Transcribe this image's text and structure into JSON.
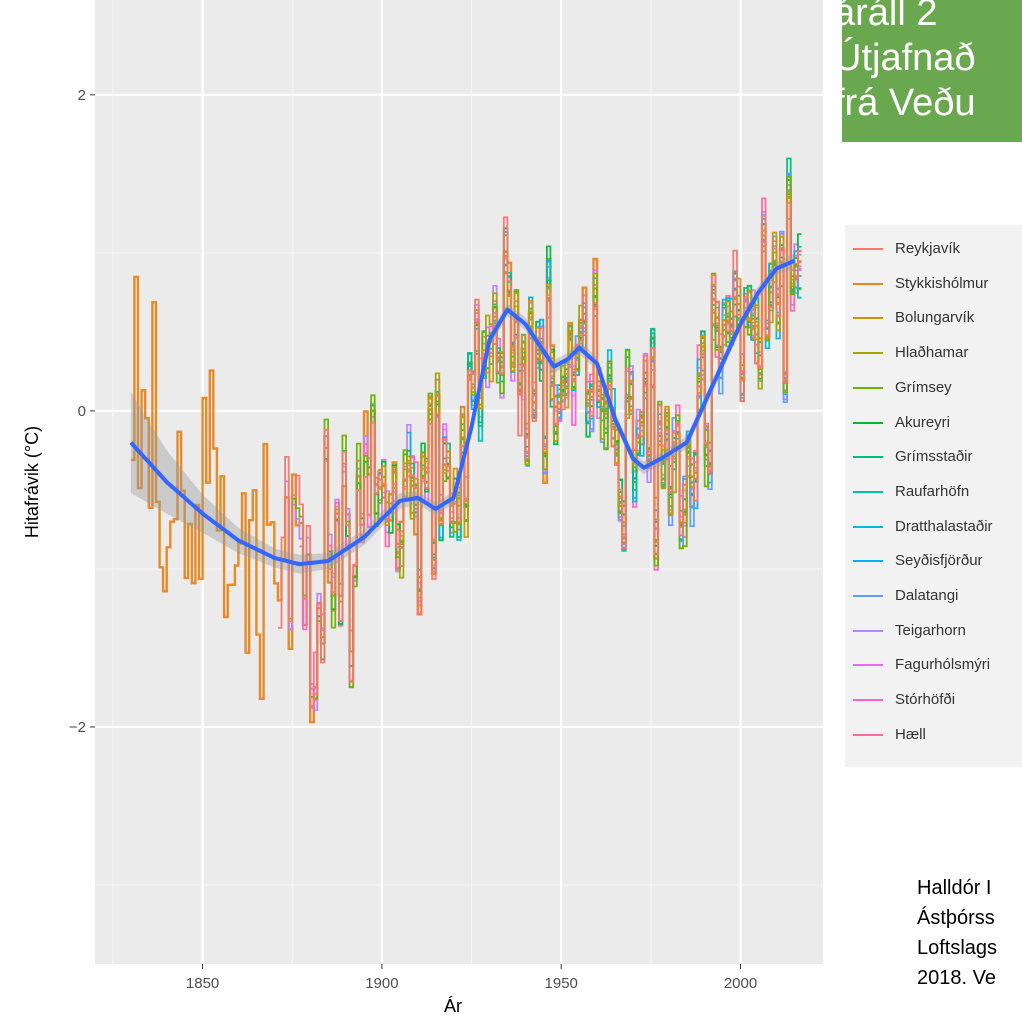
{
  "title_box": {
    "lines": [
      "áráll 2",
      "Útjafnað",
      "frá Veðu"
    ],
    "color": "#6aa84f"
  },
  "citation": {
    "lines": [
      "Halldór I",
      "Ástþórss",
      "Loftslags",
      "2018. Ve"
    ]
  },
  "chart_data": {
    "type": "line",
    "xlabel": "Ár",
    "ylabel": "Hitafrávik (°C)",
    "xlim": [
      1820,
      2023
    ],
    "ylim": [
      -3.5,
      2.6
    ],
    "xticks": [
      1850,
      1900,
      1950,
      2000
    ],
    "yticks": [
      -2,
      0,
      2
    ],
    "grid": true,
    "legend_position": "right",
    "series": [
      {
        "name": "Reykjavík",
        "color": "#f8766d",
        "start": 1871
      },
      {
        "name": "Stykkishólmur",
        "color": "#e6861c",
        "start": 1830
      },
      {
        "name": "Bolungarvík",
        "color": "#c99800",
        "start": 1898
      },
      {
        "name": "Hlaðhamar",
        "color": "#a3a500",
        "start": 1899
      },
      {
        "name": "Grímsey",
        "color": "#6bb100",
        "start": 1874
      },
      {
        "name": "Akureyri",
        "color": "#00ba38",
        "start": 1882
      },
      {
        "name": "Grímsstaðir",
        "color": "#00bf7d",
        "start": 1908
      },
      {
        "name": "Raufarhöfn",
        "color": "#00c0af",
        "start": 1920
      },
      {
        "name": "Dratthalastaðir",
        "color": "#00bcd8",
        "start": 1940
      },
      {
        "name": "Seyðisfjörður",
        "color": "#00b0f6",
        "start": 1907
      },
      {
        "name": "Dalatangi",
        "color": "#619cff",
        "start": 1939
      },
      {
        "name": "Teigarhorn",
        "color": "#b983ff",
        "start": 1873
      },
      {
        "name": "Fagurhólsmýri",
        "color": "#e76bf3",
        "start": 1898
      },
      {
        "name": "Stórhöfði",
        "color": "#fd61d1",
        "start": 1877
      },
      {
        "name": "Hæll",
        "color": "#ff67a4",
        "start": 1880
      }
    ],
    "smooth": {
      "color": "#3366ff",
      "x": [
        1830,
        1840,
        1850,
        1860,
        1870,
        1877,
        1885,
        1895,
        1905,
        1910,
        1915,
        1920,
        1925,
        1930,
        1935,
        1940,
        1945,
        1948,
        1952,
        1955,
        1960,
        1965,
        1970,
        1973,
        1978,
        1985,
        1990,
        1995,
        2000,
        2005,
        2010,
        2015
      ],
      "y": [
        -0.2,
        -0.45,
        -0.65,
        -0.82,
        -0.93,
        -0.97,
        -0.95,
        -0.8,
        -0.57,
        -0.55,
        -0.62,
        -0.55,
        -0.1,
        0.45,
        0.64,
        0.55,
        0.38,
        0.28,
        0.33,
        0.4,
        0.3,
        -0.05,
        -0.3,
        -0.36,
        -0.3,
        -0.2,
        0.05,
        0.3,
        0.55,
        0.75,
        0.9,
        0.95
      ]
    },
    "band": {
      "upper": [
        0.12,
        -0.25,
        -0.53,
        -0.74,
        -0.87,
        -0.91,
        -0.9,
        -0.75,
        -0.52,
        -0.51,
        -0.58,
        -0.51,
        -0.06,
        0.49,
        0.68,
        0.59,
        0.42,
        0.32,
        0.37,
        0.44,
        0.34,
        -0.01,
        -0.26,
        -0.32,
        -0.26,
        -0.16,
        0.09,
        0.34,
        0.59,
        0.79,
        0.94,
        1.0
      ],
      "lower": [
        -0.52,
        -0.65,
        -0.77,
        -0.9,
        -0.99,
        -1.03,
        -1.0,
        -0.85,
        -0.62,
        -0.59,
        -0.66,
        -0.59,
        -0.14,
        0.41,
        0.6,
        0.51,
        0.34,
        0.24,
        0.29,
        0.36,
        0.26,
        -0.09,
        -0.34,
        -0.4,
        -0.34,
        -0.24,
        0.01,
        0.26,
        0.51,
        0.71,
        0.86,
        0.9
      ]
    }
  }
}
